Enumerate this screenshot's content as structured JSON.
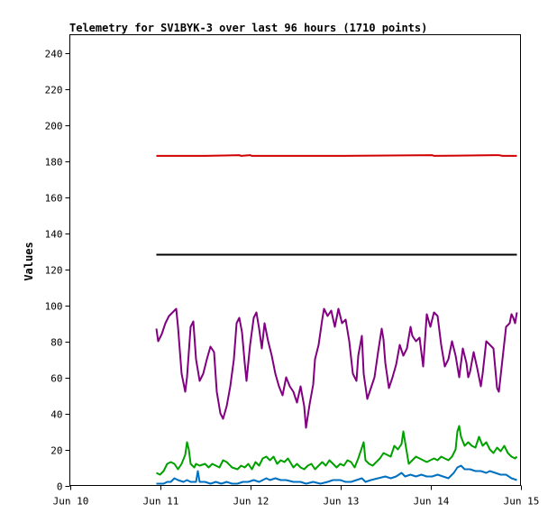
{
  "chart_data": {
    "type": "line",
    "title": "Telemetry for SV1BYK-3 over last 96 hours (1710 points)",
    "xlabel": "",
    "ylabel": "Values",
    "xlim": [
      0,
      5
    ],
    "ylim": [
      0,
      250
    ],
    "x_tick_labels": [
      "Jun 10",
      "Jun 11",
      "Jun 12",
      "Jun 13",
      "Jun 14",
      "Jun 15"
    ],
    "y_ticks": [
      0,
      20,
      40,
      60,
      80,
      100,
      120,
      140,
      160,
      180,
      200,
      220,
      240
    ],
    "grid": false,
    "legend": "none",
    "series": [
      {
        "color": "#d00000",
        "points": [
          [
            0.96,
            182.8
          ],
          [
            1.5,
            182.8
          ],
          [
            1.88,
            183.2
          ],
          [
            1.9,
            182.8
          ],
          [
            2.0,
            183.2
          ],
          [
            2.02,
            182.8
          ],
          [
            3.0,
            182.8
          ],
          [
            4.02,
            183.2
          ],
          [
            4.04,
            182.8
          ],
          [
            4.7,
            183.2
          ],
          [
            4.76,
            183.2
          ],
          [
            4.8,
            182.8
          ],
          [
            4.96,
            182.8
          ]
        ]
      },
      {
        "color": "#000000",
        "points": [
          [
            0.96,
            128
          ],
          [
            4.96,
            128
          ]
        ]
      },
      {
        "color": "#800080",
        "points": [
          [
            0.96,
            87
          ],
          [
            0.98,
            80
          ],
          [
            1.02,
            84
          ],
          [
            1.06,
            90
          ],
          [
            1.1,
            94
          ],
          [
            1.14,
            96
          ],
          [
            1.18,
            98
          ],
          [
            1.2,
            88
          ],
          [
            1.24,
            62
          ],
          [
            1.28,
            52
          ],
          [
            1.3,
            60
          ],
          [
            1.34,
            88
          ],
          [
            1.37,
            91
          ],
          [
            1.4,
            70
          ],
          [
            1.44,
            58
          ],
          [
            1.48,
            62
          ],
          [
            1.52,
            70
          ],
          [
            1.56,
            77
          ],
          [
            1.6,
            74
          ],
          [
            1.63,
            52
          ],
          [
            1.67,
            40
          ],
          [
            1.7,
            37
          ],
          [
            1.74,
            44
          ],
          [
            1.78,
            55
          ],
          [
            1.82,
            70
          ],
          [
            1.85,
            90
          ],
          [
            1.88,
            93
          ],
          [
            1.91,
            85
          ],
          [
            1.94,
            68
          ],
          [
            1.96,
            58
          ],
          [
            2.0,
            78
          ],
          [
            2.04,
            93
          ],
          [
            2.07,
            96
          ],
          [
            2.1,
            87
          ],
          [
            2.13,
            76
          ],
          [
            2.16,
            90
          ],
          [
            2.2,
            80
          ],
          [
            2.24,
            72
          ],
          [
            2.28,
            62
          ],
          [
            2.32,
            55
          ],
          [
            2.36,
            50
          ],
          [
            2.4,
            60
          ],
          [
            2.44,
            55
          ],
          [
            2.48,
            52
          ],
          [
            2.52,
            46
          ],
          [
            2.56,
            55
          ],
          [
            2.6,
            44
          ],
          [
            2.62,
            32
          ],
          [
            2.66,
            45
          ],
          [
            2.7,
            56
          ],
          [
            2.72,
            70
          ],
          [
            2.76,
            78
          ],
          [
            2.8,
            92
          ],
          [
            2.82,
            98
          ],
          [
            2.86,
            94
          ],
          [
            2.9,
            97
          ],
          [
            2.94,
            88
          ],
          [
            2.98,
            98
          ],
          [
            3.02,
            90
          ],
          [
            3.06,
            92
          ],
          [
            3.1,
            80
          ],
          [
            3.14,
            62
          ],
          [
            3.18,
            58
          ],
          [
            3.2,
            72
          ],
          [
            3.24,
            83
          ],
          [
            3.26,
            62
          ],
          [
            3.3,
            48
          ],
          [
            3.34,
            54
          ],
          [
            3.38,
            60
          ],
          [
            3.42,
            74
          ],
          [
            3.46,
            87
          ],
          [
            3.48,
            81
          ],
          [
            3.5,
            68
          ],
          [
            3.54,
            54
          ],
          [
            3.58,
            60
          ],
          [
            3.62,
            67
          ],
          [
            3.66,
            78
          ],
          [
            3.7,
            72
          ],
          [
            3.74,
            76
          ],
          [
            3.78,
            88
          ],
          [
            3.8,
            83
          ],
          [
            3.84,
            80
          ],
          [
            3.88,
            82
          ],
          [
            3.92,
            66
          ],
          [
            3.96,
            95
          ],
          [
            4.0,
            88
          ],
          [
            4.04,
            96
          ],
          [
            4.08,
            94
          ],
          [
            4.12,
            78
          ],
          [
            4.16,
            66
          ],
          [
            4.2,
            70
          ],
          [
            4.24,
            80
          ],
          [
            4.26,
            76
          ],
          [
            4.28,
            72
          ],
          [
            4.32,
            60
          ],
          [
            4.36,
            76
          ],
          [
            4.4,
            68
          ],
          [
            4.42,
            60
          ],
          [
            4.44,
            63
          ],
          [
            4.48,
            74
          ],
          [
            4.52,
            65
          ],
          [
            4.56,
            55
          ],
          [
            4.58,
            62
          ],
          [
            4.62,
            80
          ],
          [
            4.66,
            78
          ],
          [
            4.7,
            76
          ],
          [
            4.72,
            65
          ],
          [
            4.74,
            54
          ],
          [
            4.76,
            52
          ],
          [
            4.8,
            70
          ],
          [
            4.84,
            88
          ],
          [
            4.88,
            90
          ],
          [
            4.9,
            95
          ],
          [
            4.92,
            93
          ],
          [
            4.94,
            90
          ],
          [
            4.96,
            96
          ]
        ]
      },
      {
        "color": "#00a000",
        "points": [
          [
            0.96,
            7
          ],
          [
            1.0,
            6
          ],
          [
            1.04,
            8
          ],
          [
            1.08,
            12
          ],
          [
            1.12,
            13
          ],
          [
            1.16,
            12
          ],
          [
            1.2,
            9
          ],
          [
            1.24,
            12
          ],
          [
            1.28,
            17
          ],
          [
            1.3,
            24
          ],
          [
            1.32,
            20
          ],
          [
            1.34,
            12
          ],
          [
            1.38,
            10
          ],
          [
            1.4,
            12
          ],
          [
            1.44,
            11
          ],
          [
            1.5,
            12
          ],
          [
            1.54,
            10
          ],
          [
            1.58,
            12
          ],
          [
            1.62,
            11
          ],
          [
            1.66,
            10
          ],
          [
            1.7,
            14
          ],
          [
            1.74,
            13
          ],
          [
            1.8,
            10
          ],
          [
            1.86,
            9
          ],
          [
            1.9,
            11
          ],
          [
            1.94,
            10
          ],
          [
            1.98,
            12
          ],
          [
            2.02,
            9
          ],
          [
            2.06,
            13
          ],
          [
            2.1,
            11
          ],
          [
            2.14,
            15
          ],
          [
            2.18,
            16
          ],
          [
            2.22,
            14
          ],
          [
            2.26,
            16
          ],
          [
            2.3,
            12
          ],
          [
            2.34,
            14
          ],
          [
            2.38,
            13
          ],
          [
            2.42,
            15
          ],
          [
            2.48,
            10
          ],
          [
            2.52,
            12
          ],
          [
            2.56,
            10
          ],
          [
            2.6,
            9
          ],
          [
            2.64,
            11
          ],
          [
            2.68,
            12
          ],
          [
            2.72,
            9
          ],
          [
            2.76,
            11
          ],
          [
            2.8,
            13
          ],
          [
            2.84,
            11
          ],
          [
            2.88,
            14
          ],
          [
            2.92,
            12
          ],
          [
            2.96,
            10
          ],
          [
            3.0,
            12
          ],
          [
            3.04,
            11
          ],
          [
            3.08,
            14
          ],
          [
            3.12,
            13
          ],
          [
            3.16,
            10
          ],
          [
            3.2,
            15
          ],
          [
            3.24,
            21
          ],
          [
            3.26,
            24
          ],
          [
            3.28,
            14
          ],
          [
            3.32,
            12
          ],
          [
            3.36,
            11
          ],
          [
            3.4,
            13
          ],
          [
            3.44,
            15
          ],
          [
            3.48,
            18
          ],
          [
            3.52,
            17
          ],
          [
            3.56,
            16
          ],
          [
            3.6,
            22
          ],
          [
            3.64,
            20
          ],
          [
            3.68,
            23
          ],
          [
            3.7,
            30
          ],
          [
            3.72,
            24
          ],
          [
            3.76,
            12
          ],
          [
            3.8,
            14
          ],
          [
            3.84,
            16
          ],
          [
            3.88,
            15
          ],
          [
            3.92,
            14
          ],
          [
            3.96,
            13
          ],
          [
            4.0,
            14
          ],
          [
            4.04,
            15
          ],
          [
            4.08,
            14
          ],
          [
            4.12,
            16
          ],
          [
            4.16,
            15
          ],
          [
            4.2,
            14
          ],
          [
            4.24,
            16
          ],
          [
            4.28,
            20
          ],
          [
            4.3,
            30
          ],
          [
            4.32,
            33
          ],
          [
            4.34,
            27
          ],
          [
            4.38,
            22
          ],
          [
            4.42,
            24
          ],
          [
            4.46,
            22
          ],
          [
            4.5,
            21
          ],
          [
            4.54,
            27
          ],
          [
            4.58,
            22
          ],
          [
            4.62,
            24
          ],
          [
            4.66,
            20
          ],
          [
            4.7,
            18
          ],
          [
            4.74,
            21
          ],
          [
            4.78,
            19
          ],
          [
            4.82,
            22
          ],
          [
            4.86,
            18
          ],
          [
            4.9,
            16
          ],
          [
            4.94,
            15
          ],
          [
            4.96,
            16
          ]
        ]
      },
      {
        "color": "#0070c0",
        "points": [
          [
            0.96,
            1
          ],
          [
            1.04,
            1
          ],
          [
            1.08,
            2
          ],
          [
            1.12,
            2
          ],
          [
            1.16,
            4
          ],
          [
            1.2,
            3
          ],
          [
            1.26,
            2
          ],
          [
            1.3,
            3
          ],
          [
            1.34,
            2
          ],
          [
            1.4,
            2
          ],
          [
            1.42,
            8
          ],
          [
            1.44,
            2
          ],
          [
            1.5,
            2
          ],
          [
            1.56,
            1
          ],
          [
            1.62,
            2
          ],
          [
            1.68,
            1
          ],
          [
            1.74,
            2
          ],
          [
            1.8,
            1
          ],
          [
            1.86,
            1
          ],
          [
            1.92,
            2
          ],
          [
            1.98,
            2
          ],
          [
            2.04,
            3
          ],
          [
            2.1,
            2
          ],
          [
            2.14,
            3
          ],
          [
            2.18,
            4
          ],
          [
            2.22,
            3
          ],
          [
            2.28,
            4
          ],
          [
            2.34,
            3
          ],
          [
            2.4,
            3
          ],
          [
            2.48,
            2
          ],
          [
            2.56,
            2
          ],
          [
            2.62,
            1
          ],
          [
            2.7,
            2
          ],
          [
            2.78,
            1
          ],
          [
            2.86,
            2
          ],
          [
            2.92,
            3
          ],
          [
            3.0,
            3
          ],
          [
            3.06,
            2
          ],
          [
            3.12,
            2
          ],
          [
            3.18,
            3
          ],
          [
            3.24,
            4
          ],
          [
            3.28,
            2
          ],
          [
            3.34,
            3
          ],
          [
            3.42,
            4
          ],
          [
            3.5,
            5
          ],
          [
            3.56,
            4
          ],
          [
            3.62,
            5
          ],
          [
            3.68,
            7
          ],
          [
            3.72,
            5
          ],
          [
            3.78,
            6
          ],
          [
            3.84,
            5
          ],
          [
            3.9,
            6
          ],
          [
            3.96,
            5
          ],
          [
            4.02,
            5
          ],
          [
            4.08,
            6
          ],
          [
            4.14,
            5
          ],
          [
            4.2,
            4
          ],
          [
            4.26,
            7
          ],
          [
            4.3,
            10
          ],
          [
            4.34,
            11
          ],
          [
            4.38,
            9
          ],
          [
            4.44,
            9
          ],
          [
            4.5,
            8
          ],
          [
            4.56,
            8
          ],
          [
            4.62,
            7
          ],
          [
            4.66,
            8
          ],
          [
            4.72,
            7
          ],
          [
            4.78,
            6
          ],
          [
            4.84,
            6
          ],
          [
            4.9,
            4
          ],
          [
            4.96,
            3
          ]
        ]
      }
    ]
  }
}
